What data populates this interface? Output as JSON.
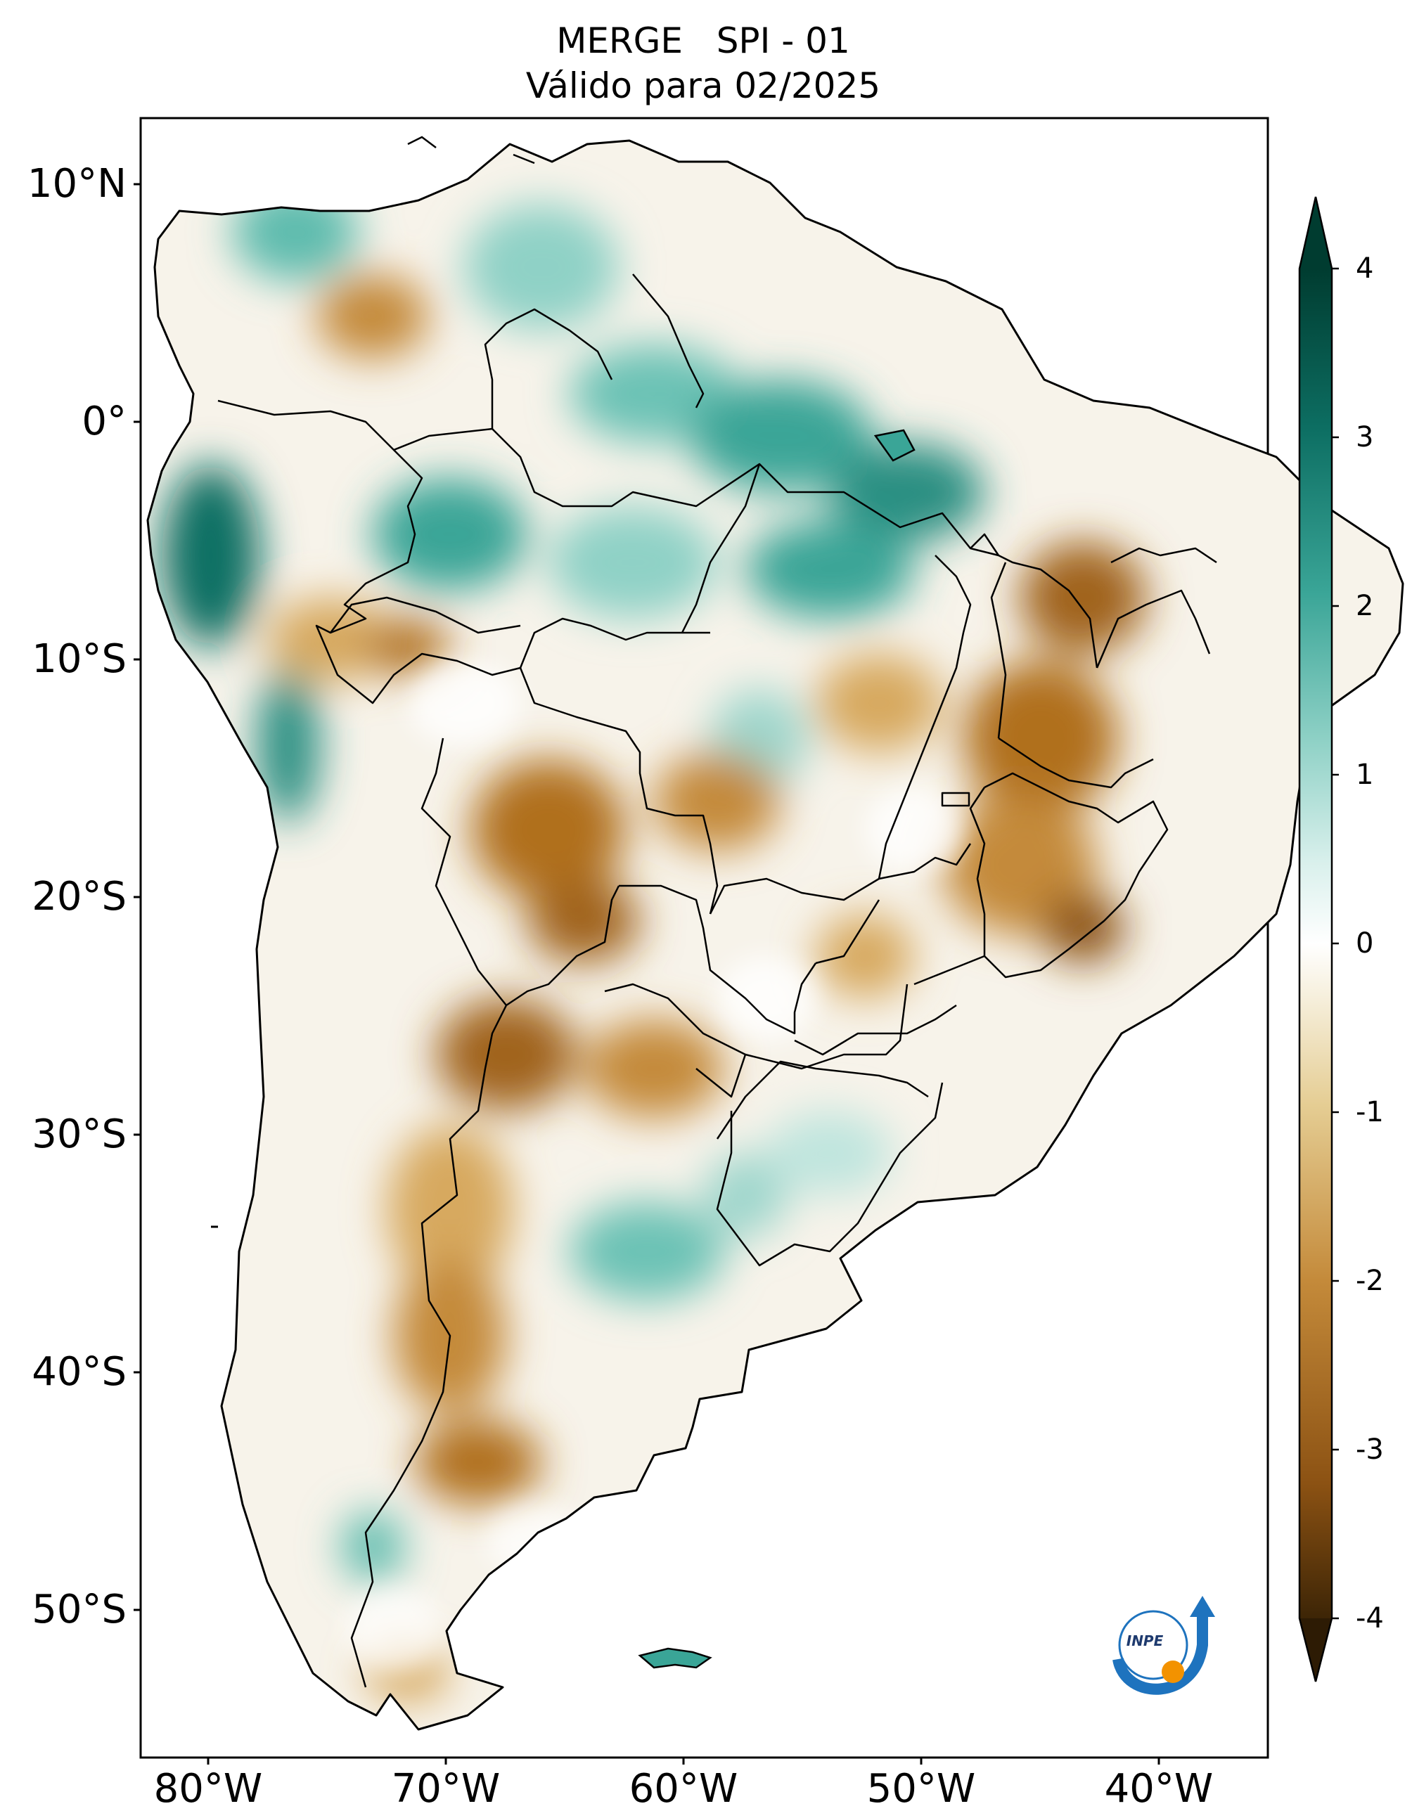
{
  "title": {
    "line1": "MERGE   SPI - 01",
    "line2": "Válido para 02/2025"
  },
  "map": {
    "lat_labels": [
      "10°N",
      "0°",
      "10°S",
      "20°S",
      "30°S",
      "40°S",
      "50°S"
    ],
    "lon_labels": [
      "80°W",
      "70°W",
      "60°W",
      "50°W",
      "40°W"
    ],
    "logo_text": "INPE"
  },
  "colorbar": {
    "ticks": [
      "4",
      "3",
      "2",
      "1",
      "0",
      "-1",
      "-2",
      "-3",
      "-4"
    ],
    "colors_low_to_high": [
      "#3d2506",
      "#8c5213",
      "#c48a3a",
      "#e5cd93",
      "#f6efdc",
      "#ffffff",
      "#d9f0ec",
      "#8fd1c6",
      "#3aa597",
      "#0d6f63",
      "#003c30"
    ],
    "range": [
      -4,
      4
    ],
    "extend": "both"
  },
  "colors": {
    "dry": "#c08838",
    "wet": "#3aa597",
    "border": "#000000"
  }
}
